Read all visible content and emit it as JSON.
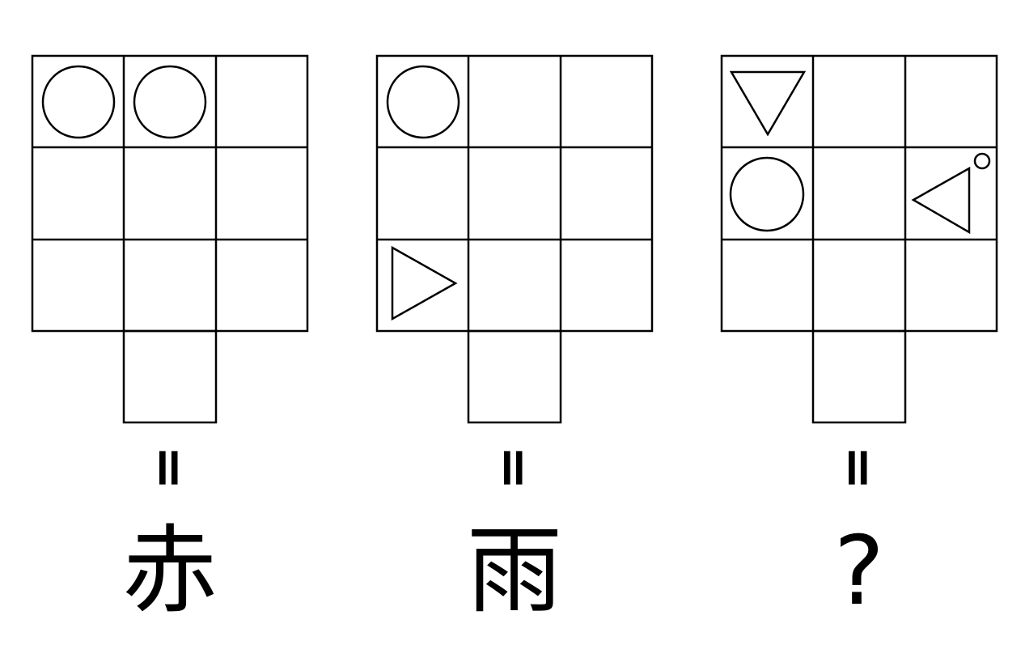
{
  "puzzle": {
    "panels": [
      {
        "equals": "=",
        "answer": "赤",
        "shapes": [
          {
            "cell": "r1c1",
            "shape": "circle"
          },
          {
            "cell": "r1c2",
            "shape": "circle"
          }
        ]
      },
      {
        "equals": "=",
        "answer": "雨",
        "shapes": [
          {
            "cell": "r1c1",
            "shape": "circle"
          },
          {
            "cell": "r3c1",
            "shape": "triangle-right"
          }
        ]
      },
      {
        "equals": "=",
        "answer": "?",
        "shapes": [
          {
            "cell": "r1c1",
            "shape": "triangle-down"
          },
          {
            "cell": "r2c1",
            "shape": "circle"
          },
          {
            "cell": "r2c3",
            "shape": "triangle-left",
            "mark": "small-circle"
          }
        ]
      }
    ]
  }
}
